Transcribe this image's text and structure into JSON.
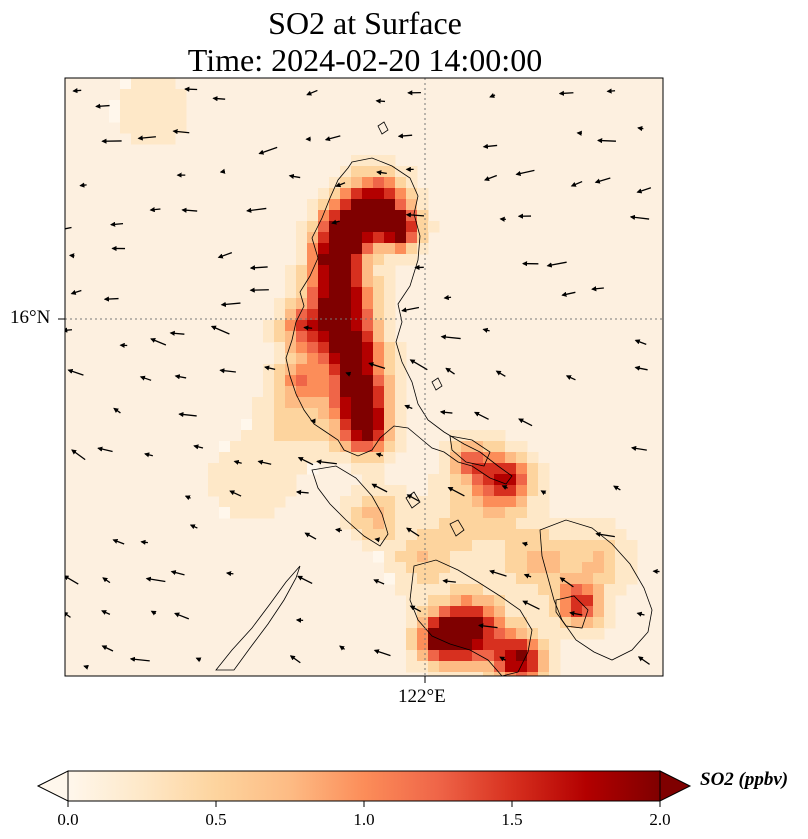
{
  "title": {
    "line1": "SO2 at Surface",
    "line2": "Time: 2024-02-20 14:00:00"
  },
  "axes": {
    "lat_tick": "16°N",
    "lon_tick": "122°E",
    "gridlines": "dotted"
  },
  "colorbar": {
    "label": "SO2 (ppbv)",
    "ticks": [
      "0.0",
      "0.5",
      "1.0",
      "1.5",
      "2.0"
    ],
    "min": 0.0,
    "max": 2.0,
    "extend": "both",
    "colormap": "OrRd",
    "colors": [
      "#fff7ec",
      "#fee8c8",
      "#fdd49e",
      "#fdbb84",
      "#fc8d59",
      "#ef6548",
      "#d7301f",
      "#b30000",
      "#7f0000"
    ]
  },
  "map": {
    "field": "SO2 concentration at surface",
    "overlay": "wind vectors",
    "coastline_color": "#000000"
  }
}
